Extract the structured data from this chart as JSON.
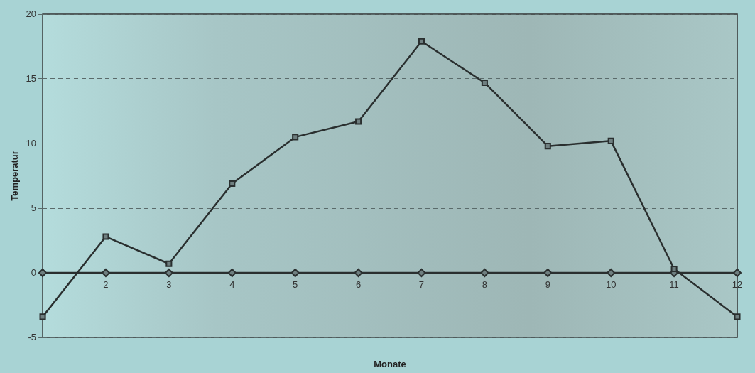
{
  "chart_data": {
    "type": "line",
    "xlabel": "Monate",
    "ylabel": "Temperatur",
    "categories": [
      null,
      "2",
      "3",
      "4",
      "5",
      "6",
      "7",
      "8",
      "9",
      "10",
      "11",
      "12"
    ],
    "series": [
      {
        "color": "#2a2f2f",
        "marker": "square",
        "values": [
          -3.4,
          2.8,
          0.7,
          6.9,
          10.5,
          11.7,
          17.9,
          14.7,
          9.8,
          10.2,
          0.3,
          -3.4
        ]
      },
      {
        "color": "#2a2f2f",
        "marker": "diamond",
        "values": [
          0,
          0,
          0,
          0,
          0,
          0,
          0,
          0,
          0,
          0,
          0,
          0
        ]
      }
    ],
    "ylim": [
      -5,
      20
    ],
    "yticks": [
      -5,
      0,
      5,
      10,
      15,
      20
    ],
    "grid": "y",
    "line_style": "solid",
    "legend": false
  }
}
